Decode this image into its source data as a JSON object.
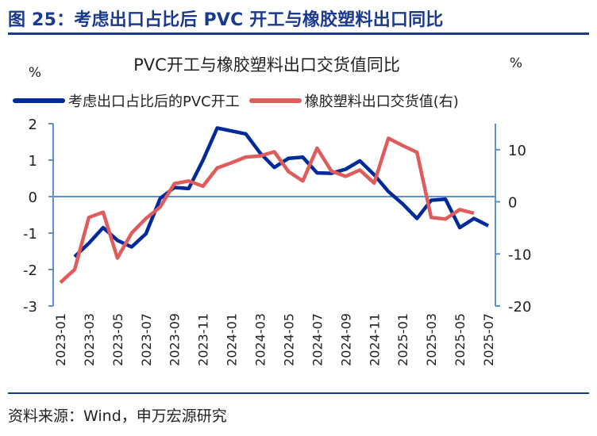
{
  "figure_title": "图 25：考虑出口占比后 PVC 开工与橡胶塑料出口同比",
  "source_note": "资料来源：Wind，申万宏源研究",
  "colors": {
    "title": "#1a3a8f",
    "axis": "#5b8fd0",
    "series_a": "#00299a",
    "series_b": "#e05c5c",
    "text": "#222222"
  },
  "chart_data": {
    "type": "line",
    "title": "PVC开工与橡胶塑料出口交货值同比",
    "y_left_unit": "%",
    "y_right_unit": "%",
    "y_left_range": [
      -3,
      2
    ],
    "y_right_range": [
      -20,
      15
    ],
    "y_left_ticks": [
      "2",
      "1",
      "0",
      "-1",
      "-2",
      "-3"
    ],
    "y_left_tick_values": [
      2,
      1,
      0,
      -1,
      -2,
      -3
    ],
    "y_right_ticks": [
      "10",
      "0",
      "-10",
      "-20"
    ],
    "y_right_tick_values": [
      10,
      0,
      -10,
      -20
    ],
    "x_labels": [
      "2023-01",
      "2023-03",
      "2023-05",
      "2023-07",
      "2023-09",
      "2023-11",
      "2024-01",
      "2024-03",
      "2024-05",
      "2024-07",
      "2024-09",
      "2024-11",
      "2025-01",
      "2025-03",
      "2025-05",
      "2025-07"
    ],
    "x_label_indices": [
      0,
      2,
      4,
      6,
      8,
      10,
      12,
      14,
      16,
      18,
      20,
      22,
      24,
      26,
      28,
      30
    ],
    "n_months": 31,
    "series": [
      {
        "name": "考虑出口占比后的PVC开工",
        "axis": "left",
        "color": "#00299a",
        "values": [
          null,
          -1.65,
          -1.28,
          -0.85,
          -1.2,
          -1.38,
          -1.02,
          -0.05,
          0.25,
          0.22,
          1.0,
          1.88,
          1.8,
          1.72,
          1.2,
          0.8,
          1.05,
          1.08,
          0.65,
          0.64,
          0.75,
          0.98,
          0.6,
          0.14,
          -0.2,
          -0.6,
          -0.1,
          -0.07,
          -0.85,
          -0.6,
          -0.8
        ]
      },
      {
        "name": "橡胶塑料出口交货值(右)",
        "axis": "right",
        "color": "#e05c5c",
        "values": [
          -15.5,
          -13.0,
          -3.0,
          -2.0,
          -10.8,
          -6.0,
          -3.2,
          -1.0,
          3.5,
          4.0,
          3.0,
          6.5,
          7.5,
          8.6,
          8.8,
          9.6,
          5.8,
          4.0,
          10.3,
          5.9,
          4.9,
          6.1,
          3.6,
          12.2,
          10.8,
          9.5,
          -3.0,
          -3.3,
          -1.5,
          -2.2,
          null
        ]
      }
    ]
  }
}
